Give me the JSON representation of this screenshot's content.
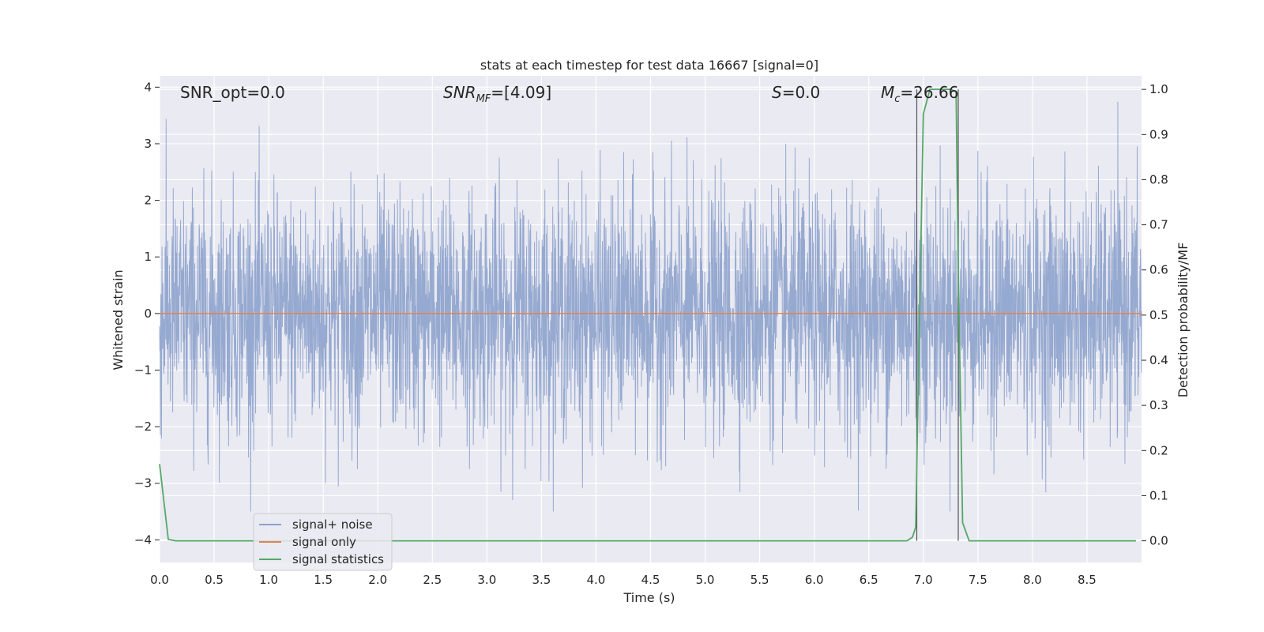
{
  "chart_data": {
    "type": "line",
    "title": "stats at each timestep for test data 16667 [signal=0]",
    "xlabel": "Time (s)",
    "ylabel_left": "Whitened strain",
    "ylabel_right": "Detection probability/MF",
    "xlim": [
      0.0,
      9.0
    ],
    "ylim_left": [
      -4.4,
      4.2
    ],
    "ylim_right": [
      -0.048,
      1.03
    ],
    "x_ticks": [
      "0.0",
      "0.5",
      "1.0",
      "1.5",
      "2.0",
      "2.5",
      "3.0",
      "3.5",
      "4.0",
      "4.5",
      "5.0",
      "5.5",
      "6.0",
      "6.5",
      "7.0",
      "7.5",
      "8.0",
      "8.5"
    ],
    "y_ticks_left": [
      "4",
      "3",
      "2",
      "1",
      "0",
      "−1",
      "−2",
      "−3",
      "−4"
    ],
    "y_ticks_right": [
      "1.0",
      "0.9",
      "0.8",
      "0.7",
      "0.6",
      "0.5",
      "0.4",
      "0.3",
      "0.2",
      "0.1",
      "0.0"
    ],
    "grid": true,
    "annotations": {
      "snr_opt": "SNR_opt=0.0",
      "snr_mf_main": "SNR",
      "snr_mf_sub": "MF",
      "snr_mf_value": "=[4.09]",
      "s_main": "S",
      "s_value": "=0.0",
      "mc_main": "M",
      "mc_sub": "c",
      "mc_value": "=26.66"
    },
    "detection_window": {
      "start": 6.94,
      "end": 7.32
    },
    "series": [
      {
        "name": "signal+ noise",
        "color": "#8da2cc",
        "description": "whitened noisy strain, roughly Gaussian, amplitude range about -3.5 to 3.8"
      },
      {
        "name": "signal only",
        "color": "#dd8452",
        "x": [
          0.0,
          9.0
        ],
        "y": [
          0.0,
          0.0
        ]
      },
      {
        "name": "signal statistics",
        "color": "#55a868",
        "x": [
          0.0,
          0.08,
          0.15,
          6.85,
          6.9,
          6.93,
          6.95,
          7.0,
          7.06,
          7.15,
          7.25,
          7.3,
          7.32,
          7.36,
          7.42,
          7.5,
          8.95
        ],
        "y": [
          0.17,
          0.003,
          0.0,
          0.0,
          0.008,
          0.03,
          0.3,
          0.945,
          1.0,
          1.0,
          1.0,
          0.995,
          0.6,
          0.04,
          0.0,
          0.0,
          0.0
        ]
      }
    ]
  }
}
